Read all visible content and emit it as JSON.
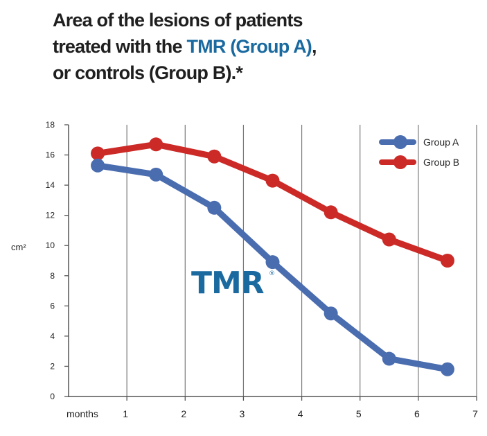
{
  "title": {
    "line1": "Area of the lesions of patients",
    "line2_pre": "treated with the ",
    "line2_accent": "TMR (Group A)",
    "line2_post": ",",
    "line3": "or controls (Group B).*"
  },
  "colors": {
    "group_a": "#4a6db0",
    "group_b": "#cc2a27",
    "accent": "#1a6aa0",
    "axis": "#555555",
    "grid": "#7a7a7a"
  },
  "logo": {
    "text": "TMR",
    "mark": "®"
  },
  "chart_data": {
    "type": "line",
    "title": "Area of the lesions of patients treated with the TMR (Group A), or controls (Group B).*",
    "xlabel": "months",
    "ylabel": "cm²",
    "xlim": [
      0,
      7
    ],
    "ylim": [
      0,
      18
    ],
    "x_ticks": [
      "1",
      "2",
      "3",
      "4",
      "5",
      "6",
      "7"
    ],
    "y_ticks": [
      "0",
      "2",
      "4",
      "6",
      "8",
      "10",
      "12",
      "14",
      "16",
      "18"
    ],
    "grid": "vertical",
    "legend": "top-right",
    "series": [
      {
        "name": "Group A",
        "x": [
          0.5,
          1.5,
          2.5,
          3.5,
          4.5,
          5.5,
          6.5
        ],
        "values": [
          15.3,
          14.7,
          12.5,
          8.9,
          5.5,
          2.5,
          1.8
        ]
      },
      {
        "name": "Group B",
        "x": [
          0.5,
          1.5,
          2.5,
          3.5,
          4.5,
          5.5,
          6.5
        ],
        "values": [
          16.1,
          16.7,
          15.9,
          14.3,
          12.2,
          10.4,
          9.0
        ]
      }
    ]
  }
}
